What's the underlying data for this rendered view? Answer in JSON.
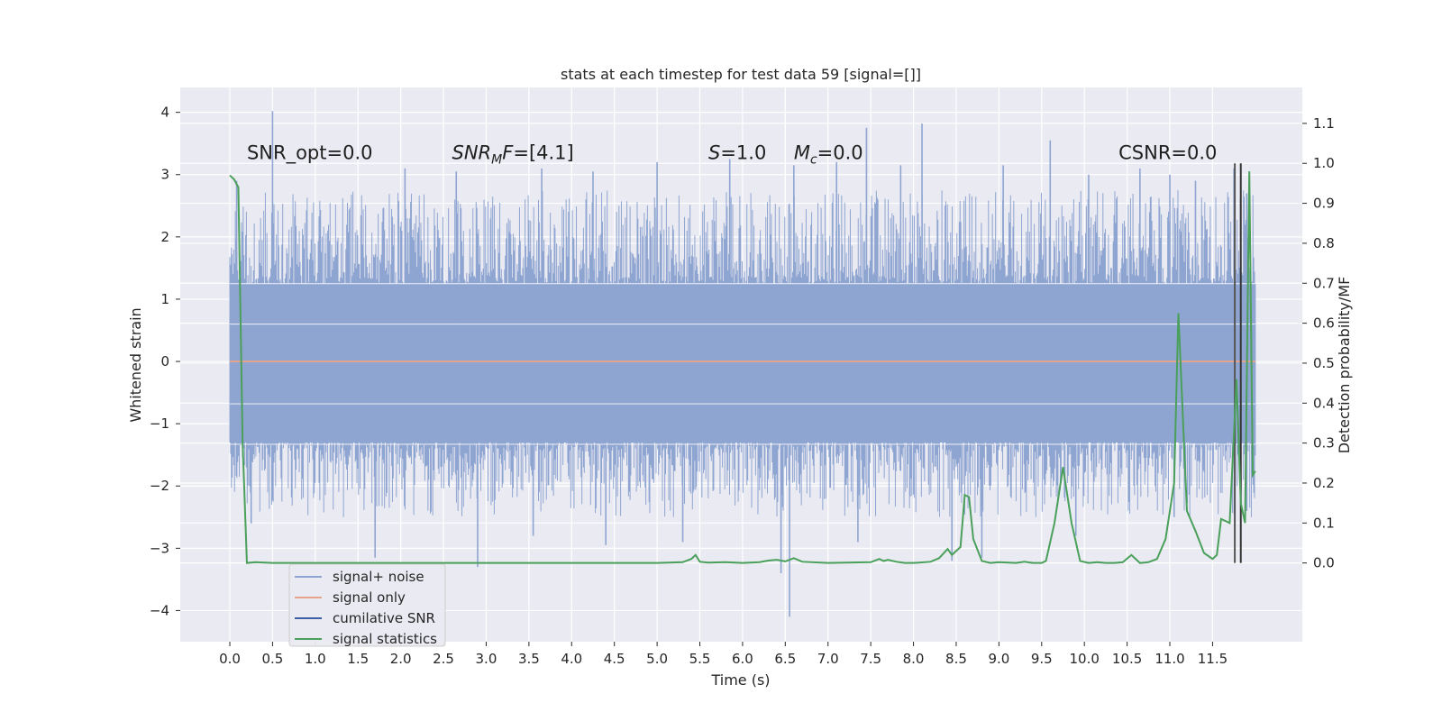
{
  "chart_data": {
    "type": "line",
    "title": "stats at each timestep for test data 59 [signal=[]]",
    "xlabel": "Time (s)",
    "ylabel": "Whitened strain",
    "y2label": "Detection probability/MF",
    "xlim": [
      -0.58,
      12.55
    ],
    "ylim": [
      -4.5,
      4.4
    ],
    "y2lim": [
      -0.197,
      1.19
    ],
    "x_ticks": [
      0.0,
      0.5,
      1.0,
      1.5,
      2.0,
      2.5,
      3.0,
      3.5,
      4.0,
      4.5,
      5.0,
      5.5,
      6.0,
      6.5,
      7.0,
      7.5,
      8.0,
      8.5,
      9.0,
      9.5,
      10.0,
      10.5,
      11.0,
      11.5
    ],
    "x_tick_labels": [
      "0.0",
      "0.5",
      "1.0",
      "1.5",
      "2.0",
      "2.5",
      "3.0",
      "3.5",
      "4.0",
      "4.5",
      "5.0",
      "5.5",
      "6.0",
      "6.5",
      "7.0",
      "7.5",
      "8.0",
      "8.5",
      "9.0",
      "9.5",
      "10.0",
      "10.5",
      "11.0",
      "11.5"
    ],
    "y_ticks": [
      4,
      3,
      2,
      1,
      0,
      -1,
      -2,
      -3,
      -4
    ],
    "y_tick_labels": [
      "4",
      "3",
      "2",
      "1",
      "0",
      "−1",
      "−2",
      "−3",
      "−4"
    ],
    "y2_ticks": [
      1.1,
      1.0,
      0.9,
      0.8,
      0.7,
      0.6,
      0.5,
      0.4,
      0.3,
      0.2,
      0.1,
      0.0
    ],
    "y2_tick_labels": [
      "1.1",
      "1.0",
      "0.9",
      "0.8",
      "0.7",
      "0.6",
      "0.5",
      "0.4",
      "0.3",
      "0.2",
      "0.1",
      "0.0"
    ],
    "grid": true,
    "legend_placement": "lower-left",
    "annotations": [
      {
        "label": "SNR_opt=0.0",
        "x": 0.2,
        "y": 3.25,
        "italic": false
      },
      {
        "label": "SNR_MF=[4.1]",
        "main": "SNR",
        "sub": "M",
        "rest": "F",
        "tail": "=[4.1]",
        "x": 2.6,
        "y": 3.25,
        "italic": true
      },
      {
        "label": "S=1.0",
        "main": "S",
        "tail": "=1.0",
        "x": 5.6,
        "y": 3.25,
        "italic": true
      },
      {
        "label": "Mc=0.0",
        "main": "M",
        "sub": "c",
        "tail": "=0.0",
        "x": 6.6,
        "y": 3.25,
        "italic": true
      },
      {
        "label": "CSNR=0.0",
        "x": 10.4,
        "y": 3.25,
        "italic": false
      }
    ],
    "noise_band": {
      "x_start": 0.0,
      "x_end": 12.0,
      "core_min": -1.3,
      "core_max": 1.25,
      "upper_spikes": [
        [
          0.5,
          4.02
        ],
        [
          0.08,
          2.9
        ],
        [
          2.05,
          3.1
        ],
        [
          2.65,
          3.05
        ],
        [
          3.65,
          3.1
        ],
        [
          4.25,
          3.05
        ],
        [
          5.0,
          3.2
        ],
        [
          5.85,
          3.25
        ],
        [
          6.6,
          3.15
        ],
        [
          7.1,
          3.2
        ],
        [
          7.45,
          3.75
        ],
        [
          7.85,
          3.15
        ],
        [
          8.1,
          3.82
        ],
        [
          9.05,
          3.15
        ],
        [
          9.6,
          3.55
        ],
        [
          10.05,
          3.0
        ],
        [
          10.65,
          3.1
        ],
        [
          11.0,
          3.0
        ],
        [
          11.3,
          2.9
        ],
        [
          11.75,
          3.1
        ],
        [
          11.9,
          2.7
        ]
      ],
      "lower_spikes": [
        [
          1.7,
          -3.15
        ],
        [
          2.9,
          -3.3
        ],
        [
          6.45,
          -3.4
        ],
        [
          6.55,
          -4.1
        ],
        [
          8.45,
          -3.2
        ],
        [
          8.8,
          -3.15
        ],
        [
          0.25,
          -2.6
        ],
        [
          3.55,
          -2.8
        ],
        [
          4.4,
          -2.95
        ],
        [
          5.3,
          -2.9
        ],
        [
          7.35,
          -2.9
        ],
        [
          9.9,
          -2.8
        ],
        [
          11.05,
          -2.5
        ],
        [
          11.9,
          -2.4
        ]
      ]
    },
    "series": [
      {
        "name": "signal+ noise",
        "color": "#8fa5d1",
        "role": "noise-band"
      },
      {
        "name": "signal only",
        "color": "#e8a48a",
        "y_value": 0.0
      },
      {
        "name": "cumilative SNR",
        "color": "#3b5ea6"
      },
      {
        "name": "signal statistics",
        "color": "#4aa05a",
        "axis": "right",
        "x": [
          0.0,
          0.05,
          0.1,
          0.15,
          0.2,
          0.3,
          0.5,
          1.0,
          2.0,
          3.0,
          4.0,
          5.0,
          5.3,
          5.4,
          5.45,
          5.5,
          5.6,
          5.8,
          6.0,
          6.2,
          6.3,
          6.4,
          6.5,
          6.6,
          6.7,
          7.0,
          7.5,
          7.6,
          7.65,
          7.7,
          7.8,
          7.9,
          8.0,
          8.2,
          8.3,
          8.4,
          8.45,
          8.55,
          8.6,
          8.65,
          8.7,
          8.8,
          8.9,
          9.0,
          9.2,
          9.3,
          9.4,
          9.5,
          9.55,
          9.65,
          9.75,
          9.85,
          9.95,
          10.05,
          10.15,
          10.25,
          10.35,
          10.45,
          10.55,
          10.65,
          10.75,
          10.85,
          10.95,
          11.05,
          11.1,
          11.2,
          11.3,
          11.4,
          11.5,
          11.55,
          11.6,
          11.7,
          11.78,
          11.83,
          11.88,
          11.93,
          11.97,
          12.0
        ],
        "y": [
          0.97,
          0.96,
          0.94,
          0.3,
          0.0,
          0.002,
          0.0,
          0.0,
          0.0,
          0.0,
          0.0,
          0.0,
          0.002,
          0.01,
          0.02,
          0.003,
          0.001,
          0.002,
          0.0,
          0.002,
          0.006,
          0.008,
          0.004,
          0.012,
          0.003,
          0.0,
          0.002,
          0.01,
          0.005,
          0.008,
          0.003,
          0.0,
          0.0,
          0.003,
          0.012,
          0.035,
          0.02,
          0.04,
          0.17,
          0.165,
          0.06,
          0.005,
          0.0,
          0.002,
          0.0,
          0.003,
          0.0,
          0.0,
          0.005,
          0.1,
          0.24,
          0.1,
          0.005,
          0.0,
          0.002,
          0.0,
          0.0,
          0.002,
          0.02,
          0.0,
          0.002,
          0.01,
          0.06,
          0.2,
          0.625,
          0.13,
          0.08,
          0.025,
          0.01,
          0.02,
          0.11,
          0.1,
          0.46,
          0.15,
          0.1,
          0.98,
          0.22,
          0.23
        ]
      }
    ],
    "vertical_markers": [
      {
        "x": 11.76,
        "color": "#555555"
      },
      {
        "x": 11.83,
        "color": "#333333"
      }
    ],
    "legend": [
      "signal+ noise",
      "signal only",
      "cumilative SNR",
      "signal statistics"
    ]
  }
}
